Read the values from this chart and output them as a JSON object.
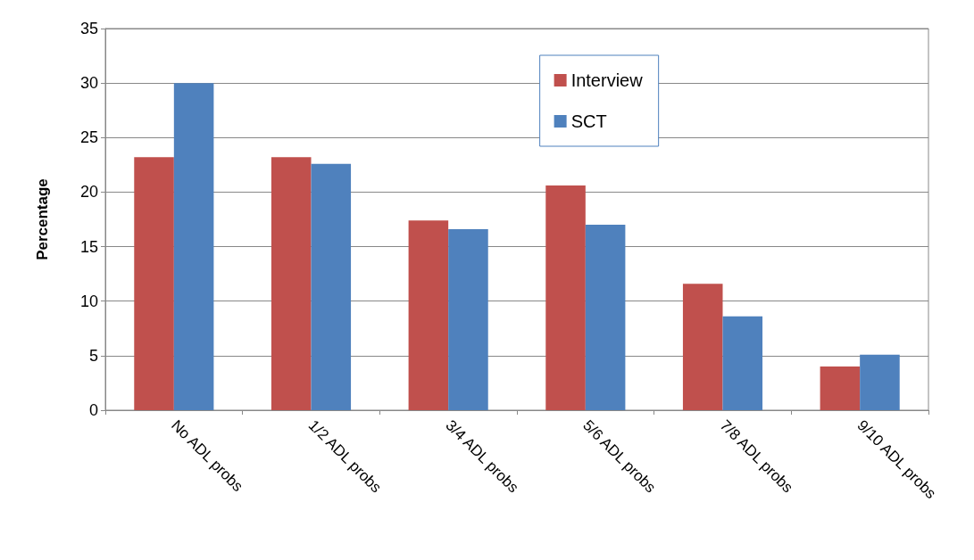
{
  "chart_data": {
    "type": "bar",
    "ylabel": "Percentage",
    "categories": [
      "No ADL probs",
      "1/2 ADL probs",
      "3/4 ADL probs",
      "5/6 ADL probs",
      "7/8 ADL probs",
      "9/10 ADL probs"
    ],
    "series": [
      {
        "name": "Interview",
        "color": "#c0504d",
        "values": [
          23.2,
          23.2,
          17.4,
          20.6,
          11.6,
          4.0
        ]
      },
      {
        "name": "SCT",
        "color": "#4f81bd",
        "values": [
          30.0,
          22.6,
          16.6,
          17.0,
          8.6,
          5.1
        ]
      }
    ],
    "ylim": [
      0,
      35
    ],
    "yticks": [
      0,
      5,
      10,
      15,
      20,
      25,
      30,
      35
    ],
    "grid": "y",
    "legend": "top right"
  }
}
